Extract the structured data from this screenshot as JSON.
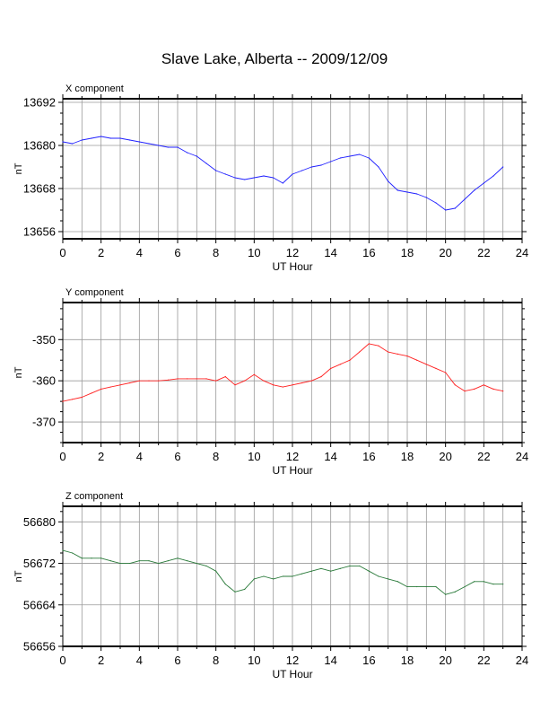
{
  "title": "Slave Lake, Alberta -- 2009/12/09",
  "colors": {
    "grid": "#9a9a9a",
    "axis": "#000000"
  },
  "chart_data": [
    {
      "type": "line",
      "title": "X component",
      "xlabel": "UT Hour",
      "ylabel": "nT",
      "xlim": [
        0,
        24
      ],
      "ylim": [
        13654,
        13693
      ],
      "x_ticks": [
        0,
        2,
        4,
        6,
        8,
        10,
        12,
        14,
        16,
        18,
        20,
        22,
        24
      ],
      "y_ticks": [
        13656,
        13668,
        13680,
        13692
      ],
      "grid": true,
      "series": [
        {
          "color": "#2020ff",
          "x": [
            0,
            0.5,
            1,
            1.5,
            2,
            2.5,
            3,
            3.5,
            4,
            4.5,
            5,
            5.5,
            6,
            6.5,
            7,
            7.5,
            8,
            8.5,
            9,
            9.5,
            10,
            10.5,
            11,
            11.5,
            12,
            12.5,
            13,
            13.5,
            14,
            14.5,
            15,
            15.5,
            16,
            16.5,
            17,
            17.5,
            18,
            18.5,
            19,
            19.5,
            20,
            20.5,
            21,
            21.5,
            22,
            22.5,
            23
          ],
          "values": [
            13681,
            13680.5,
            13681.5,
            13682,
            13682.5,
            13682,
            13682,
            13681.5,
            13681,
            13680.5,
            13680,
            13679.5,
            13679.5,
            13678,
            13677,
            13675,
            13673,
            13672,
            13671,
            13670.5,
            13671,
            13671.5,
            13671,
            13669.5,
            13672,
            13673,
            13674,
            13674.5,
            13675.5,
            13676.5,
            13677,
            13677.5,
            13676.5,
            13674,
            13670,
            13667.5,
            13667,
            13666.5,
            13665.5,
            13664,
            13662,
            13662.5,
            13665,
            13667.5,
            13669.5,
            13671.5,
            13674
          ]
        }
      ]
    },
    {
      "type": "line",
      "title": "Y component",
      "xlabel": "UT Hour",
      "ylabel": "nT",
      "xlim": [
        0,
        24
      ],
      "ylim": [
        -375,
        -341
      ],
      "x_ticks": [
        0,
        2,
        4,
        6,
        8,
        10,
        12,
        14,
        16,
        18,
        20,
        22,
        24
      ],
      "y_ticks": [
        -370,
        -360,
        -350
      ],
      "grid": true,
      "series": [
        {
          "color": "#ff2020",
          "x": [
            0,
            0.5,
            1,
            1.5,
            2,
            2.5,
            3,
            3.5,
            4,
            4.5,
            5,
            5.5,
            6,
            6.5,
            7,
            7.5,
            8,
            8.5,
            9,
            9.5,
            10,
            10.5,
            11,
            11.5,
            12,
            12.5,
            13,
            13.5,
            14,
            14.5,
            15,
            15.5,
            16,
            16.5,
            17,
            17.5,
            18,
            18.5,
            19,
            19.5,
            20,
            20.5,
            21,
            21.5,
            22,
            22.5,
            23
          ],
          "values": [
            -365,
            -364.5,
            -364,
            -363,
            -362,
            -361.5,
            -361,
            -360.5,
            -360,
            -360,
            -360,
            -359.8,
            -359.5,
            -359.5,
            -359.5,
            -359.5,
            -360,
            -359,
            -361,
            -360,
            -358.5,
            -360,
            -361,
            -361.5,
            -361,
            -360.5,
            -360,
            -359,
            -357,
            -356,
            -355,
            -353,
            -351,
            -351.5,
            -353,
            -353.5,
            -354,
            -355,
            -356,
            -357,
            -358,
            -361,
            -362.5,
            -362,
            -361,
            -362,
            -362.5
          ]
        }
      ]
    },
    {
      "type": "line",
      "title": "Z component",
      "xlabel": "UT Hour",
      "ylabel": "nT",
      "xlim": [
        0,
        24
      ],
      "ylim": [
        56656,
        56683
      ],
      "x_ticks": [
        0,
        2,
        4,
        6,
        8,
        10,
        12,
        14,
        16,
        18,
        20,
        22,
        24
      ],
      "y_ticks": [
        56656,
        56664,
        56672,
        56680
      ],
      "grid": true,
      "series": [
        {
          "color": "#2a7a3a",
          "x": [
            0,
            0.5,
            1,
            1.5,
            2,
            2.5,
            3,
            3.5,
            4,
            4.5,
            5,
            5.5,
            6,
            6.5,
            7,
            7.5,
            8,
            8.5,
            9,
            9.5,
            10,
            10.5,
            11,
            11.5,
            12,
            12.5,
            13,
            13.5,
            14,
            14.5,
            15,
            15.5,
            16,
            16.5,
            17,
            17.5,
            18,
            18.5,
            19,
            19.5,
            20,
            20.5,
            21,
            21.5,
            22,
            22.5,
            23
          ],
          "values": [
            56674.5,
            56674,
            56673,
            56673,
            56673,
            56672.5,
            56672,
            56672,
            56672.5,
            56672.5,
            56672,
            56672.5,
            56673,
            56672.5,
            56672,
            56671.5,
            56670.5,
            56668,
            56666.5,
            56667,
            56669,
            56669.5,
            56669,
            56669.5,
            56669.5,
            56670,
            56670.5,
            56671,
            56670.5,
            56671,
            56671.5,
            56671.5,
            56670.5,
            56669.5,
            56669,
            56668.5,
            56667.5,
            56667.5,
            56667.5,
            56667.5,
            56666,
            56666.5,
            56667.5,
            56668.5,
            56668.5,
            56668,
            56668
          ]
        }
      ]
    }
  ]
}
